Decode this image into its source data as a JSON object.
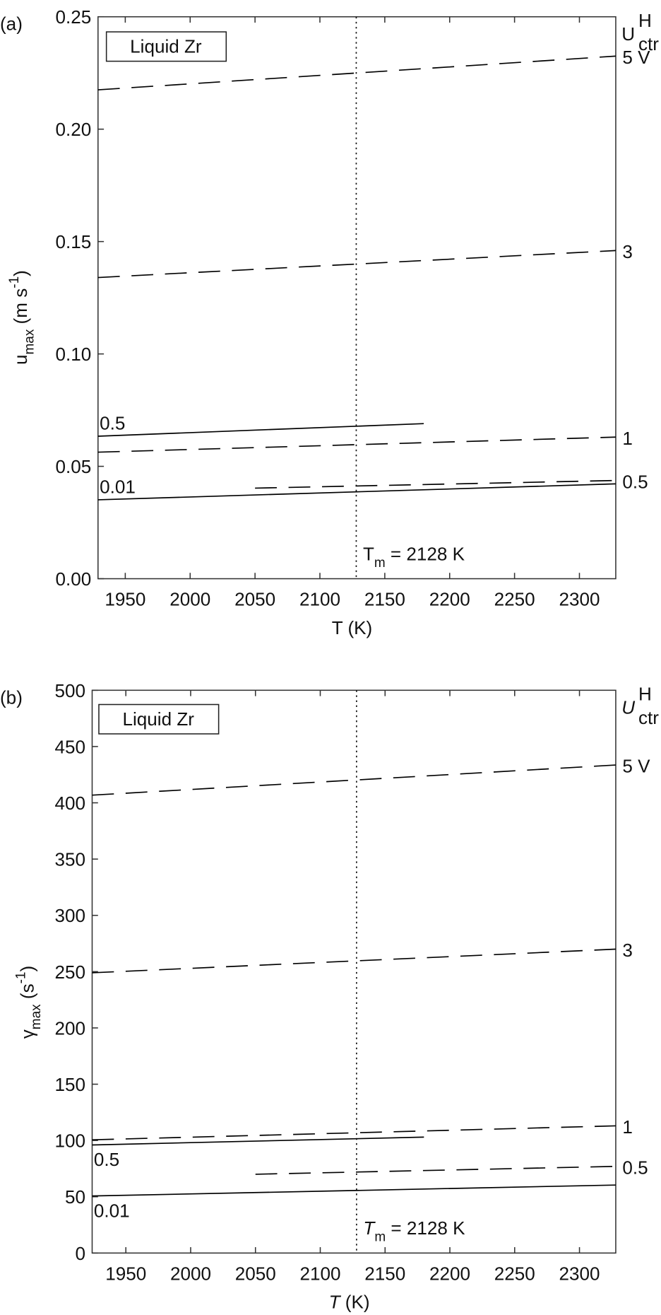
{
  "chart_data": [
    {
      "type": "line",
      "panel_label": "(a)",
      "box_label": "Liquid Zr",
      "xlabel": [
        {
          "text": "T (K)"
        }
      ],
      "ylabel": [
        {
          "text": "u"
        },
        {
          "text": "max",
          "shift": "sub"
        },
        {
          "text": " (m s"
        },
        {
          "text": "-1",
          "shift": "sup"
        },
        {
          "text": ")"
        }
      ],
      "y2label": [
        {
          "text": "U"
        },
        {
          "text": "H",
          "shift": "sup"
        },
        {
          "text": "ctr",
          "shift": "sub"
        }
      ],
      "xlim": [
        1929,
        2328
      ],
      "xticks": [
        1950,
        2000,
        2050,
        2100,
        2150,
        2200,
        2250,
        2300
      ],
      "ylim": [
        0,
        0.25
      ],
      "yticks": [
        {
          "value": 0,
          "label": "0.00"
        },
        {
          "value": 0.05,
          "label": "0.05"
        },
        {
          "value": 0.1,
          "label": "0.10"
        },
        {
          "value": 0.15,
          "label": "0.15"
        },
        {
          "value": 0.2,
          "label": "0.20"
        },
        {
          "value": 0.25,
          "label": "0.25"
        }
      ],
      "vline": 2128,
      "vline_label": [
        {
          "text": "T"
        },
        {
          "text": "m",
          "shift": "sub"
        },
        {
          "text": " = 2128 K"
        }
      ],
      "series": [
        {
          "name": "5 V",
          "color": "#000000",
          "style": "dashed",
          "x": [
            1929,
            2328
          ],
          "values": [
            0.2175,
            0.2325
          ]
        },
        {
          "name": "3",
          "color": "#000000",
          "style": "dashed",
          "x": [
            1929,
            2328
          ],
          "values": [
            0.134,
            0.146
          ]
        },
        {
          "name": "1",
          "color": "#000000",
          "style": "dashed",
          "x": [
            1929,
            2328
          ],
          "values": [
            0.0563,
            0.063
          ]
        },
        {
          "name": "0.5",
          "color": "#000000",
          "style": "dashed",
          "x": [
            2050,
            2328
          ],
          "values": [
            0.0403,
            0.0437
          ]
        },
        {
          "name": "0.5",
          "color": "#000000",
          "style": "solid",
          "x": [
            1929,
            2180
          ],
          "values": [
            0.0634,
            0.069
          ]
        },
        {
          "name": "0.01",
          "color": "#000000",
          "style": "solid",
          "x": [
            1929,
            2328
          ],
          "values": [
            0.0351,
            0.0422
          ]
        }
      ]
    },
    {
      "type": "line",
      "panel_label": "(b)",
      "box_label": "Liquid Zr",
      "xlabel": [
        {
          "text": "T",
          "italic": true
        },
        {
          "text": " (K)"
        }
      ],
      "ylabel": [
        {
          "text": "γ"
        },
        {
          "text": "max",
          "shift": "sub"
        },
        {
          "text": " (s"
        },
        {
          "text": "-1",
          "shift": "sup"
        },
        {
          "text": ")"
        }
      ],
      "y2label": [
        {
          "text": "U",
          "italic": true
        },
        {
          "text": "H",
          "shift": "sup"
        },
        {
          "text": "ctr",
          "shift": "sub"
        }
      ],
      "xlim": [
        1924,
        2328
      ],
      "xticks": [
        1950,
        2000,
        2050,
        2100,
        2150,
        2200,
        2250,
        2300
      ],
      "ylim": [
        0,
        500
      ],
      "yticks": [
        0,
        50,
        100,
        150,
        200,
        250,
        300,
        350,
        400,
        450,
        500
      ],
      "vline": 2128,
      "vline_label": [
        {
          "text": "T",
          "italic": true
        },
        {
          "text": "m",
          "shift": "sub"
        },
        {
          "text": " = 2128 K"
        }
      ],
      "series": [
        {
          "name": "5 V",
          "color": "#000000",
          "style": "dashed",
          "x": [
            1924,
            2328
          ],
          "values": [
            406.8,
            433.6
          ]
        },
        {
          "name": "3",
          "color": "#000000",
          "style": "dashed",
          "x": [
            1924,
            2328
          ],
          "values": [
            249,
            270
          ]
        },
        {
          "name": "1",
          "color": "#000000",
          "style": "dashed",
          "x": [
            1924,
            2328
          ],
          "values": [
            100.6,
            113
          ]
        },
        {
          "name": "0.5",
          "color": "#000000",
          "style": "dashed",
          "x": [
            2050,
            2328
          ],
          "values": [
            70,
            77
          ]
        },
        {
          "name": "0.5",
          "color": "#000000",
          "style": "solid",
          "x": [
            1924,
            2180
          ],
          "values": [
            96,
            103
          ]
        },
        {
          "name": "0.01",
          "color": "#000000",
          "style": "solid",
          "x": [
            1924,
            2328
          ],
          "values": [
            50.7,
            60.4
          ]
        }
      ]
    }
  ]
}
